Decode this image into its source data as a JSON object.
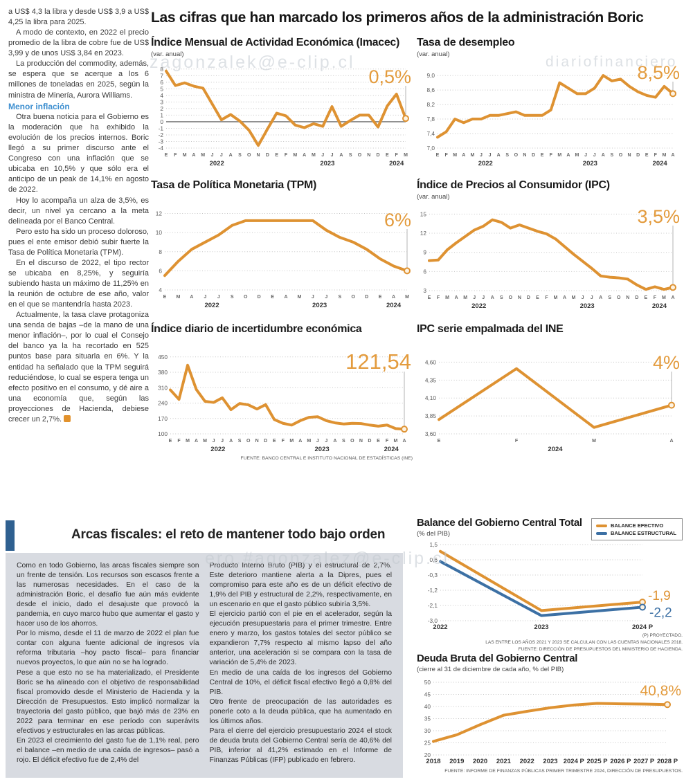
{
  "headline": "Las cifras que han marcado los primeros años de la administración Boric",
  "left_column": {
    "paragraphs": [
      "a US$ 4,3 la libra y desde US$ 3,9 a US$ 4,25 la libra para 2025.",
      "A modo de contexto, en 2022 el precio promedio de la libra de cobre fue de US$ 3,99 y de unos US$ 3,84 en 2023.",
      "La producción del commodity, además, se espera que se acerque a los 6 millones de toneladas en 2025, según la ministra de Minería, Aurora Williams."
    ],
    "subhead": "Menor inflación",
    "paragraphs2": [
      "Otra buena noticia para el Gobierno es la moderación que ha exhibido la evolución de los precios internos. Boric llegó a su primer discurso ante el Congreso con una inflación que se ubicaba en 10,5% y que sólo era el anticipo de un peak de 14,1% en agosto de 2022.",
      "Hoy lo acompaña un alza de 3,5%, es decir, un nivel ya cercano a la meta delineada por el Banco Central.",
      "Pero esto ha sido un proceso doloroso, pues el ente emisor debió subir fuerte la Tasa de Política Monetaria (TPM).",
      "En el discurso de 2022, el tipo rector se ubicaba en 8,25%, y seguiría subiendo hasta un máximo de 11,25% en la reunión de octubre de ese año, valor en el que se mantendría hasta 2023.",
      "Actualmente, la tasa clave protagoniza una senda de bajas –de la mano de una menor inflación–, por lo cual el Consejo del banco ya la ha recortado en 525 puntos base para situarla en 6%. Y la entidad ha señalado que la TPM seguirá reduciéndose, lo cual se espera tenga un efecto positivo en el consumo, y dé aire a una economía que, según las proyecciones de Hacienda, debiese crecer un 2,7%."
    ]
  },
  "watermarks": {
    "top_right": "diariofinanciero",
    "chart1": "zagonzalek@e-clip.cl",
    "bottom": "ero.#agonzalez@e-clip.cl"
  },
  "colors": {
    "orange": "#DE9232",
    "blue": "#3C70A4",
    "label_orange": "#E39B3D"
  },
  "chart_data": {
    "imacec": {
      "type": "line",
      "title": "Índice Mensual de Actividad Económica (Imacec)",
      "subtitle": "(var. anual)",
      "ylim": [
        -4,
        8.4
      ],
      "yticks": [
        [
          8,
          "8"
        ],
        [
          7,
          "7"
        ],
        [
          6,
          "6"
        ],
        [
          5,
          "5"
        ],
        [
          4,
          "4"
        ],
        [
          3,
          "3"
        ],
        [
          2,
          "2"
        ],
        [
          1,
          "1"
        ],
        [
          0,
          "0"
        ],
        [
          -1,
          "-1"
        ],
        [
          -2,
          "-2"
        ],
        [
          -3,
          "-3"
        ],
        [
          -4,
          "-4"
        ]
      ],
      "zero_line": true,
      "x_labels": [
        "E",
        "F",
        "M",
        "A",
        "M",
        "J",
        "J",
        "A",
        "S",
        "O",
        "N",
        "D",
        "E",
        "F",
        "M",
        "A",
        "M",
        "J",
        "J",
        "A",
        "S",
        "O",
        "N",
        "D",
        "E",
        "F",
        "M"
      ],
      "year_labels": [
        {
          "text": "2022",
          "index": 5.5
        },
        {
          "text": "2023",
          "index": 17.5
        },
        {
          "text": "2024",
          "index": 25
        }
      ],
      "margins": {
        "l": 22,
        "r": 10,
        "t": 10,
        "b": 30
      },
      "big_label": {
        "text": "0,5%",
        "size": 27,
        "y": 34
      },
      "series": [
        {
          "name": "Imacec",
          "color": "#DE9232",
          "values": [
            7.7,
            5.5,
            5.9,
            5.4,
            5.1,
            2.7,
            0.3,
            1.1,
            0.1,
            -1.3,
            -3.6,
            -1.1,
            1.3,
            0.9,
            -0.5,
            -0.9,
            -0.3,
            -0.7,
            2.3,
            -0.7,
            0.2,
            1.0,
            1.0,
            -0.8,
            2.4,
            4.2,
            0.5
          ]
        }
      ]
    },
    "desempleo": {
      "type": "line",
      "title": "Tasa de desempleo",
      "subtitle": "(var. anual)",
      "ylim": [
        7.0,
        9.25
      ],
      "yticks": [
        [
          9.0,
          "9,0"
        ],
        [
          8.6,
          "8,6"
        ],
        [
          8.2,
          "8,2"
        ],
        [
          7.8,
          "7,8"
        ],
        [
          7.4,
          "7,4"
        ],
        [
          7.0,
          "7,0"
        ]
      ],
      "x_labels": [
        "E",
        "F",
        "M",
        "A",
        "M",
        "J",
        "J",
        "A",
        "S",
        "O",
        "N",
        "D",
        "E",
        "F",
        "M",
        "A",
        "M",
        "J",
        "J",
        "A",
        "S",
        "O",
        "N",
        "D",
        "E",
        "F",
        "M",
        "A"
      ],
      "year_labels": [
        {
          "text": "2022",
          "index": 5.5
        },
        {
          "text": "2023",
          "index": 17.5
        },
        {
          "text": "2024",
          "index": 25.5
        }
      ],
      "margins": {
        "l": 30,
        "r": 12,
        "t": 10,
        "b": 30
      },
      "big_label": {
        "text": "8,5%",
        "size": 27,
        "y": 28
      },
      "series": [
        {
          "name": "Tasa de desempleo",
          "color": "#DE9232",
          "values": [
            7.3,
            7.45,
            7.8,
            7.7,
            7.8,
            7.8,
            7.9,
            7.9,
            7.95,
            8.0,
            7.9,
            7.9,
            7.9,
            8.05,
            8.8,
            8.65,
            8.5,
            8.5,
            8.65,
            9.0,
            8.85,
            8.9,
            8.7,
            8.55,
            8.45,
            8.4,
            8.7,
            8.5
          ]
        }
      ]
    },
    "tpm": {
      "type": "line",
      "title": "Tasa de Política Monetaria (TPM)",
      "ylim": [
        4,
        12.4
      ],
      "yticks": [
        [
          12,
          "12"
        ],
        [
          10,
          "10"
        ],
        [
          8,
          "8"
        ],
        [
          6,
          "6"
        ],
        [
          4,
          "4"
        ]
      ],
      "x_labels": [
        "E",
        "M",
        "A",
        "J",
        "J",
        "S",
        "O",
        "D",
        "E",
        "A",
        "M",
        "J",
        "J",
        "S",
        "O",
        "D",
        "E",
        "A",
        "M"
      ],
      "year_labels": [
        {
          "text": "2022",
          "index": 3.5
        },
        {
          "text": "2023",
          "index": 11.5
        },
        {
          "text": "2024",
          "index": 17
        }
      ],
      "margins": {
        "l": 20,
        "r": 8,
        "t": 12,
        "b": 30
      },
      "big_label": {
        "text": "6%",
        "size": 27,
        "y": 36
      },
      "series": [
        {
          "name": "TPM",
          "color": "#DE9232",
          "values": [
            5.5,
            7.0,
            8.25,
            9.0,
            9.75,
            10.75,
            11.25,
            11.25,
            11.25,
            11.25,
            11.25,
            11.25,
            10.25,
            9.5,
            9.0,
            8.25,
            7.25,
            6.5,
            6.0
          ]
        }
      ]
    },
    "ipc": {
      "type": "line",
      "title": "Índice de Precios al Consumidor (IPC)",
      "subtitle": "(var. anual)",
      "ylim": [
        3,
        15.8
      ],
      "yticks": [
        [
          15,
          "15"
        ],
        [
          12,
          "12"
        ],
        [
          9,
          "9"
        ],
        [
          6,
          "6"
        ],
        [
          3,
          "3"
        ]
      ],
      "x_labels": [
        "E",
        "F",
        "M",
        "A",
        "M",
        "J",
        "J",
        "A",
        "S",
        "O",
        "N",
        "D",
        "E",
        "F",
        "M",
        "A",
        "M",
        "J",
        "J",
        "A",
        "S",
        "O",
        "N",
        "D",
        "E",
        "F",
        "M",
        "A"
      ],
      "year_labels": [
        {
          "text": "2022",
          "index": 5.5
        },
        {
          "text": "2023",
          "index": 17.5
        },
        {
          "text": "2024",
          "index": 25.5
        }
      ],
      "margins": {
        "l": 18,
        "r": 12,
        "t": 10,
        "b": 30
      },
      "big_label": {
        "text": "3,5%",
        "size": 27,
        "y": 30
      },
      "series": [
        {
          "name": "IPC",
          "color": "#DE9232",
          "values": [
            7.7,
            7.8,
            9.4,
            10.5,
            11.5,
            12.5,
            13.1,
            14.1,
            13.7,
            12.8,
            13.3,
            12.8,
            12.3,
            11.9,
            11.1,
            9.9,
            8.7,
            7.6,
            6.5,
            5.3,
            5.1,
            5.0,
            4.8,
            3.9,
            3.2,
            3.6,
            3.2,
            3.5
          ]
        }
      ]
    },
    "incertidumbre": {
      "type": "line",
      "title": "Índice diario de incertidumbre económica",
      "ylim": [
        100,
        465
      ],
      "yticks": [
        [
          450,
          "450"
        ],
        [
          380,
          "380"
        ],
        [
          310,
          "310"
        ],
        [
          240,
          "240"
        ],
        [
          170,
          "170"
        ],
        [
          100,
          "100"
        ]
      ],
      "x_labels": [
        "E",
        "F",
        "M",
        "A",
        "M",
        "J",
        "J",
        "A",
        "S",
        "O",
        "N",
        "D",
        "E",
        "F",
        "M",
        "A",
        "M",
        "J",
        "J",
        "A",
        "S",
        "O",
        "N",
        "D",
        "E",
        "F",
        "M",
        "A"
      ],
      "year_labels": [
        {
          "text": "2022",
          "index": 5.5
        },
        {
          "text": "2023",
          "index": 17.5
        },
        {
          "text": "2024",
          "index": 25.5
        }
      ],
      "margins": {
        "l": 28,
        "r": 12,
        "t": 12,
        "b": 30
      },
      "big_label": {
        "text": "121,54",
        "size": 31,
        "y": 34
      },
      "series": [
        {
          "name": "Incertidumbre económica",
          "color": "#DE9232",
          "values": [
            300,
            257,
            412,
            302,
            248,
            243,
            264,
            210,
            238,
            232,
            213,
            233,
            165,
            148,
            140,
            160,
            175,
            178,
            160,
            150,
            145,
            148,
            147,
            140,
            135,
            140,
            124,
            121.54
          ]
        }
      ],
      "source": "FUENTE: BANCO CENTRAL E INSTITUTO NACIONAL DE ESTADÍSTICAS (INE)"
    },
    "ipc_ine": {
      "type": "line",
      "title": "IPC serie empalmada del INE",
      "ylim": [
        3.6,
        4.72
      ],
      "yticks": [
        [
          4.6,
          "4,60"
        ],
        [
          4.35,
          "4,35"
        ],
        [
          4.1,
          "4,10"
        ],
        [
          3.85,
          "3,85"
        ],
        [
          3.6,
          "3,60"
        ]
      ],
      "x_labels": [
        "E",
        "F",
        "M",
        "A"
      ],
      "year_labels": [
        {
          "text": "2024",
          "index": 1.5
        }
      ],
      "margins": {
        "l": 32,
        "r": 14,
        "t": 12,
        "b": 30
      },
      "big_label": {
        "text": "4%",
        "size": 27,
        "y": 34
      },
      "series": [
        {
          "name": "IPC serie empalmada",
          "color": "#DE9232",
          "values": [
            3.8,
            4.51,
            3.69,
            4.0
          ]
        }
      ]
    },
    "balance": {
      "type": "line",
      "title": "Balance del Gobierno Central Total",
      "subtitle": "(% del PIB)",
      "ylim": [
        -3.0,
        1.5
      ],
      "yticks": [
        [
          1.5,
          "1,5"
        ],
        [
          0.6,
          "0,6"
        ],
        [
          -0.3,
          "-0,3"
        ],
        [
          -1.2,
          "-1,2"
        ],
        [
          -2.1,
          "-2,1"
        ],
        [
          -3.0,
          "-3,0"
        ]
      ],
      "x_labels": [
        "2022",
        "2023",
        "2024 P"
      ],
      "xstyle": "years",
      "margins": {
        "l": 34,
        "r": 58,
        "t": 8,
        "b": 16
      },
      "legend": [
        {
          "label": "BALANCE EFECTIVO",
          "color": "#DE9232"
        },
        {
          "label": "BALANCE ESTRUCTURAL",
          "color": "#3C70A4"
        }
      ],
      "series": [
        {
          "name": "Balance efectivo",
          "color": "#DE9232",
          "values": [
            1.1,
            -2.4,
            -1.9
          ],
          "end_label": {
            "text": "-1,9",
            "dx": 8,
            "dy": -3,
            "size": 19
          }
        },
        {
          "name": "Balance estructural",
          "color": "#3C70A4",
          "values": [
            0.5,
            -2.7,
            -2.2
          ],
          "end_label": {
            "text": "-2,2",
            "dx": 10,
            "dy": 14,
            "size": 19
          }
        }
      ],
      "footnotes": [
        "(P) PROYECTADO.",
        "LAS ENTRE LOS AÑOS 2021 Y 2023 SE CALCULAN  CON LAS CUENTAS NACIONALES 2018.",
        "FUENTE: DIRECCIÓN DE PRESUPUESTOS DEL MINISTERIO DE HACIENDA."
      ]
    },
    "deuda": {
      "type": "line",
      "title": "Deuda Bruta del Gobierno Central",
      "subtitle": "(cierre al 31 de diciembre de cada año, % del PIB)",
      "ylim": [
        20,
        50
      ],
      "yticks": [
        [
          50,
          "50"
        ],
        [
          45,
          "45"
        ],
        [
          40,
          "40"
        ],
        [
          35,
          "35"
        ],
        [
          30,
          "30"
        ],
        [
          25,
          "25"
        ],
        [
          20,
          "20"
        ]
      ],
      "x_labels": [
        "2018",
        "2019",
        "2020",
        "2021",
        "2022",
        "2023",
        "2024 P",
        "2025 P",
        "2026 P",
        "2027 P",
        "2028 P"
      ],
      "xstyle": "years",
      "margins": {
        "l": 24,
        "r": 22,
        "t": 11,
        "b": 18
      },
      "big_label": {
        "text": "40,8%",
        "size": 21,
        "y": 30,
        "leader": false
      },
      "series": [
        {
          "name": "Deuda bruta",
          "color": "#DE9232",
          "values": [
            25.6,
            28.3,
            32.5,
            36.4,
            38.0,
            39.5,
            40.6,
            41.3,
            41.1,
            41.0,
            40.8
          ]
        }
      ],
      "source": "FUENTE: INFORME DE FINANZAS PÚBLICAS PRIMER TRIMESTRE 2024, DIRECCIÓN DE PRESUPUESTOS."
    }
  },
  "arcas": {
    "title": "Arcas fiscales: el reto de mantener todo bajo orden",
    "col1": [
      "Como en todo Gobierno, las arcas fiscales siempre son un frente de tensión. Los recursos son escasos frente a las numerosas necesidades. En el caso de la administración Boric, el desafío fue aún más evidente desde el inicio, dado el desajuste que provocó la pandemia, en cuyo marco hubo que aumentar el gasto y hacer uso de los ahorros.",
      "Por lo mismo, desde el 11 de marzo de 2022 el plan fue contar con alguna fuente adicional de ingresos vía reforma tributaria –hoy pacto fiscal– para financiar nuevos proyectos, lo que aún no se ha logrado.",
      "Pese a que esto no se ha materializado, el Presidente Boric se ha alineado con el objetivo de responsabilidad fiscal promovido desde el Ministerio de Hacienda y la Dirección de Presupuestos. Esto implicó normalizar la trayectoria del gasto público, que bajó más de 23% en 2022 para terminar en ese período con superávits efectivos y estructurales en las arcas públicas.",
      "En 2023 el crecimiento del gasto fue de 1,1% real, pero el balance –en medio de una caída de ingresos–  pasó a rojo. El déficit efectivo fue de 2,4% del"
    ],
    "col2": [
      "Producto Interno Bruto (PIB) y el estructural de 2,7%. Este deterioro mantiene alerta a la Dipres, pues el compromiso para este año es de un déficit efectivo de 1,9% del PIB y estructural de 2,2%, respectivamente, en un escenario en que el gasto público subiría 3,5%.",
      "El ejercicio partió con el pie en el acelerador, según la ejecución presupuestaria para el primer trimestre. Entre enero y marzo, los gastos totales del sector público se expandieron 7,7% respecto al mismo lapso del año anterior, una aceleración si se compara con la tasa de variación de 5,4% de 2023.",
      "En medio de una caída de los ingresos del Gobierno Central de 10%, el déficit fiscal efectivo llegó a 0,8% del PIB.",
      "Otro frente de preocupación de las autoridades es ponerle coto a la deuda pública, que ha aumentado en los últimos años.",
      "Para el cierre del ejercicio presupuestario 2024 el stock de deuda bruta del Gobierno Central sería de 40,6% del PIB, inferior al 41,2% estimado en el Informe de Finanzas Públicas (IFP) publicado en febrero."
    ]
  }
}
